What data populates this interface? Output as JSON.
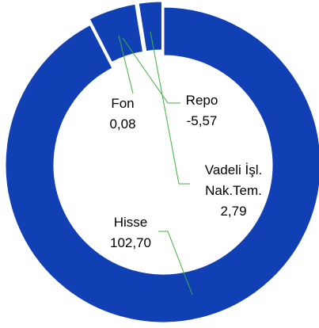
{
  "chart_data": {
    "type": "donut",
    "categories": [
      "Hisse",
      "Repo",
      "Fon",
      "Vadeli İşl. Nak.Tem."
    ],
    "values": [
      102.7,
      -5.57,
      0.08,
      2.79
    ],
    "value_labels": [
      "102,70",
      "-5,57",
      "0,08",
      "2,79"
    ],
    "color": "#1040b4",
    "leader_color": "#3cb33c"
  }
}
